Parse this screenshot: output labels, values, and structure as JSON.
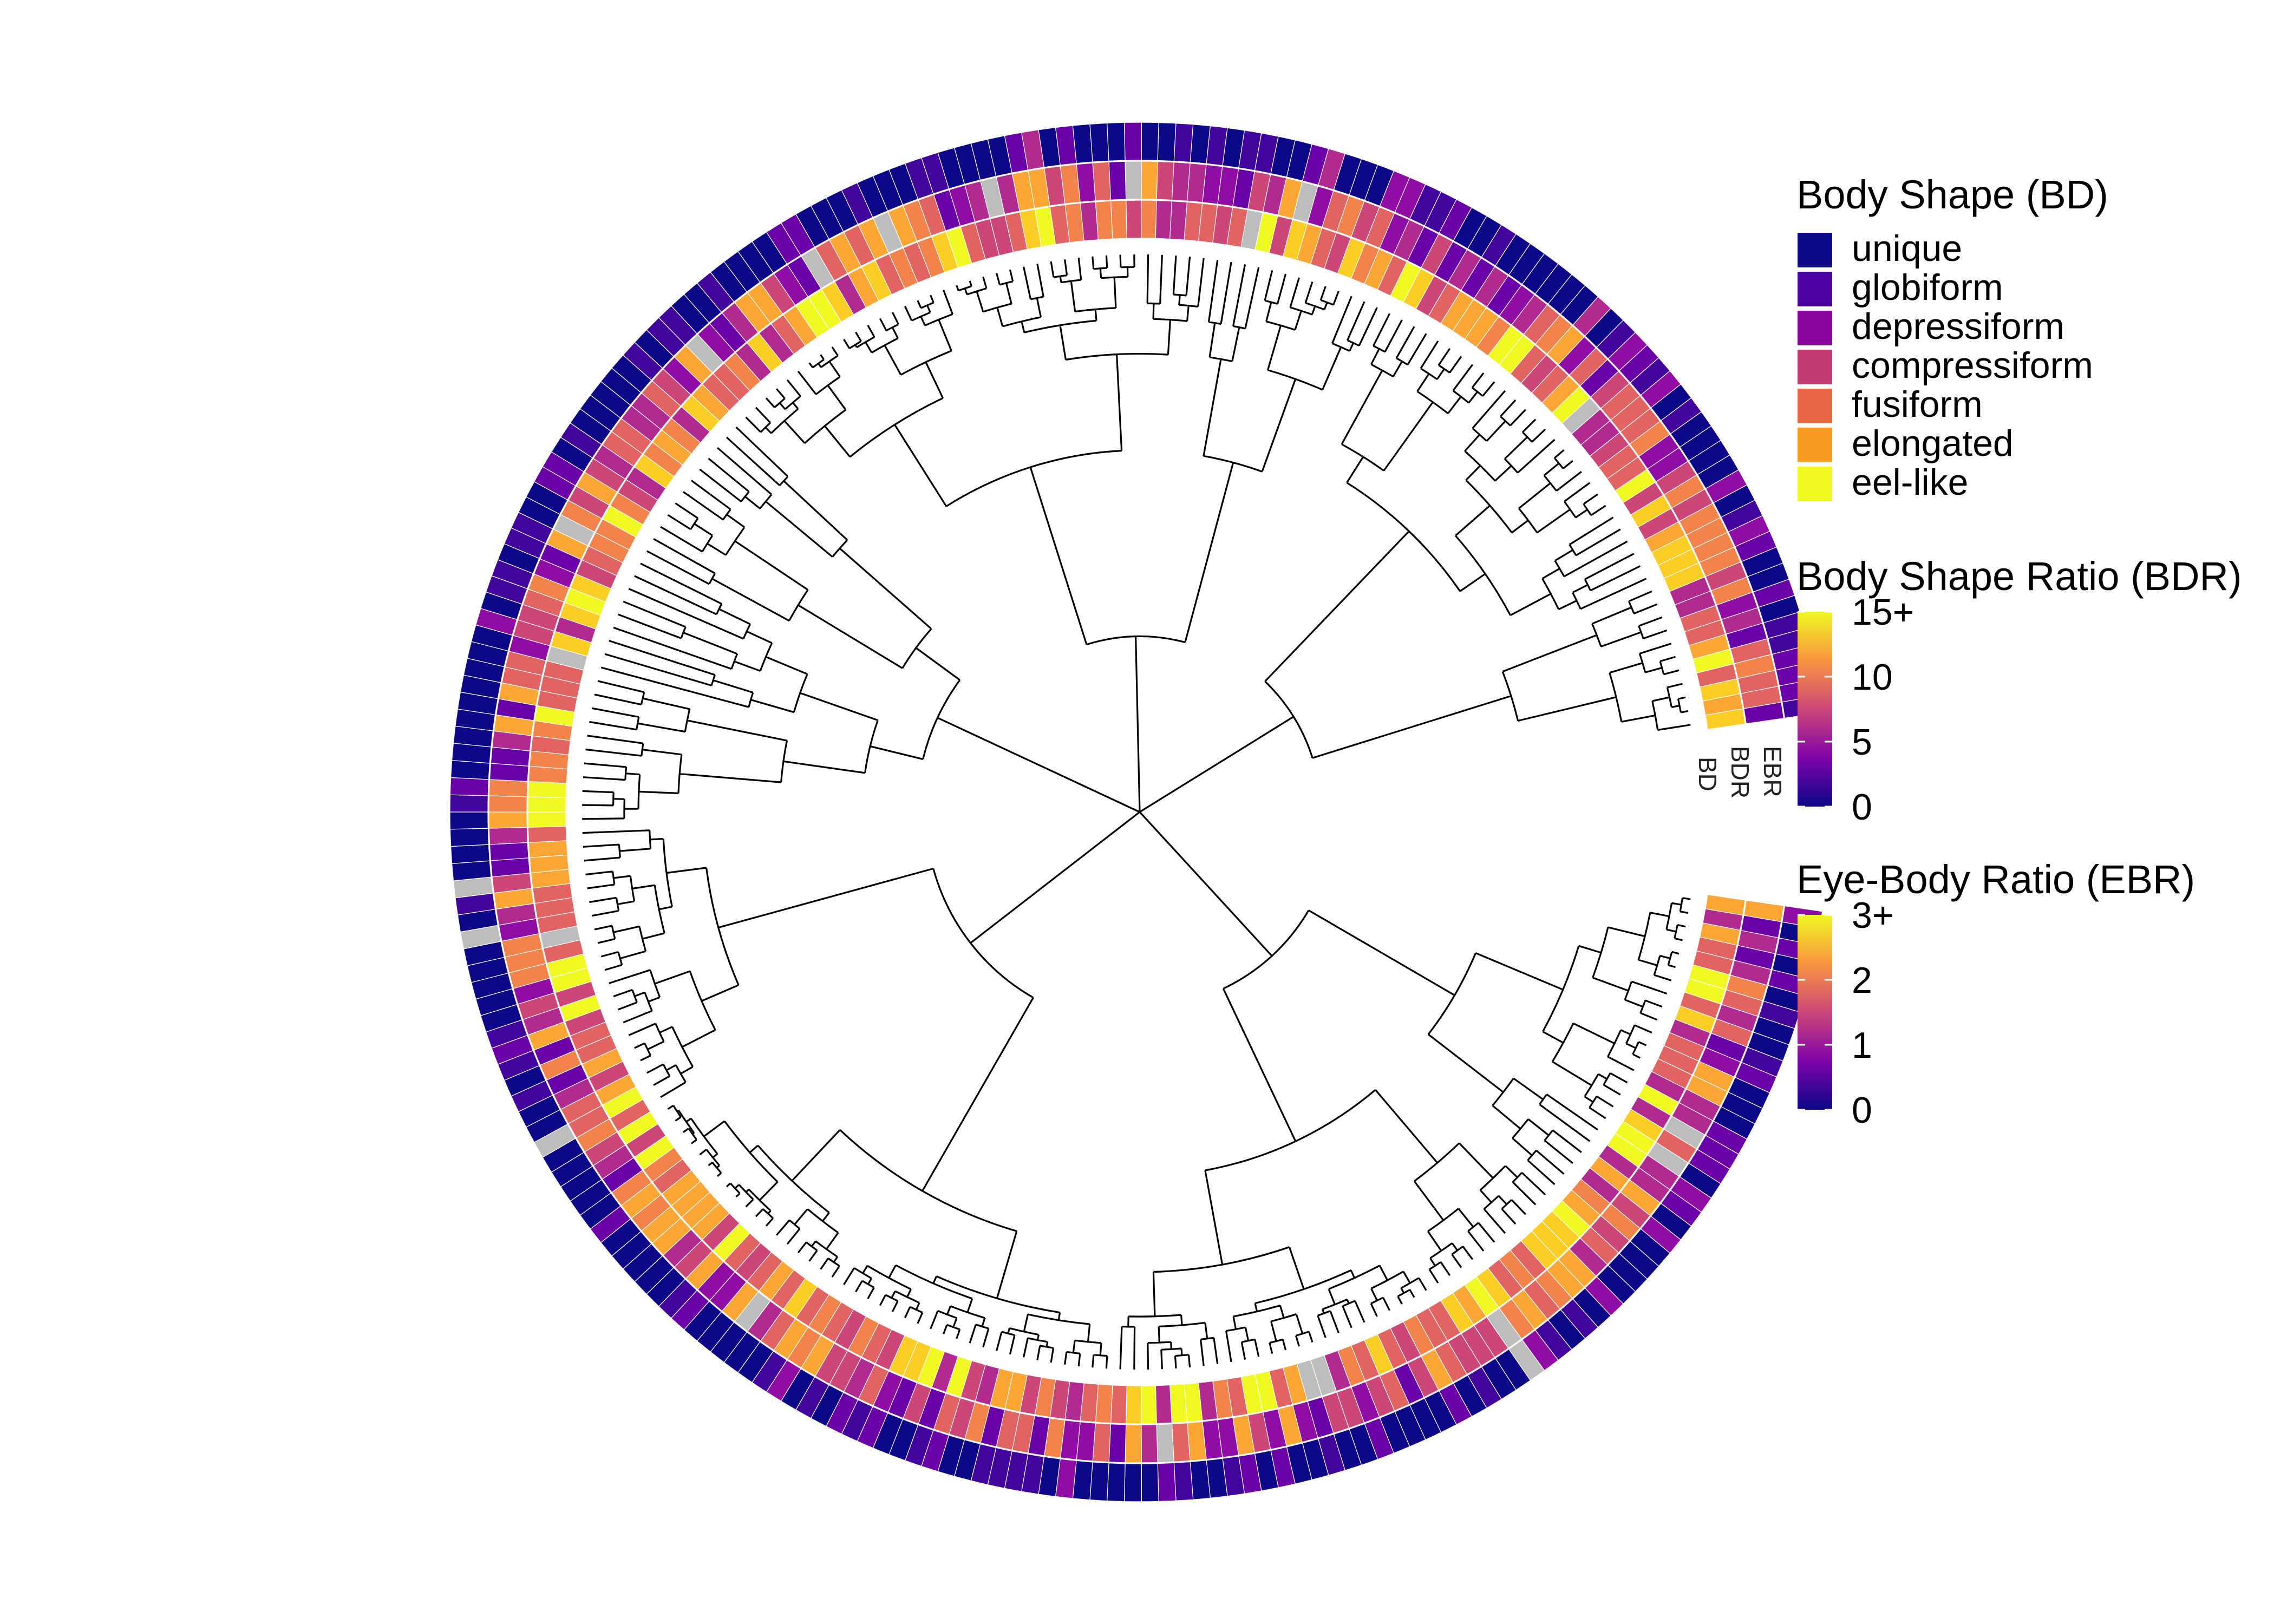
{
  "legend": {
    "body_shape": {
      "title": "Body Shape (BD)",
      "items": [
        {
          "label": "unique",
          "color": "#0d0887"
        },
        {
          "label": "globiform",
          "color": "#4c02a1"
        },
        {
          "label": "depressiform",
          "color": "#8a069f"
        },
        {
          "label": "compressiform",
          "color": "#c13b72"
        },
        {
          "label": "fusiform",
          "color": "#e66543"
        },
        {
          "label": "elongated",
          "color": "#f89b22"
        },
        {
          "label": "eel-like",
          "color": "#f0f921"
        }
      ]
    },
    "body_shape_ratio": {
      "title": "Body Shape Ratio (BDR)",
      "ticks": [
        "15+",
        "10",
        "5",
        "0"
      ],
      "tick_values": [
        15,
        10,
        5,
        0
      ]
    },
    "eye_body_ratio": {
      "title": "Eye-Body Ratio (EBR)",
      "ticks": [
        "3+",
        "2",
        "1",
        "0"
      ],
      "tick_values": [
        3,
        2,
        1,
        0
      ]
    }
  },
  "ring_labels": [
    "EBR",
    "BDR",
    "BD"
  ],
  "colors": {
    "plasma": [
      "#0d0887",
      "#41049d",
      "#6a00a8",
      "#8f0da4",
      "#b12a90",
      "#cc4778",
      "#e16462",
      "#f2844b",
      "#fca636",
      "#fcce25",
      "#f0f921"
    ],
    "missing": "#bdbdbd",
    "branch": "#000000"
  },
  "tree": {
    "tip_count": 240,
    "ring_order_inner_to_outer": [
      "BD",
      "BDR",
      "EBR"
    ],
    "gap_side": "right"
  }
}
